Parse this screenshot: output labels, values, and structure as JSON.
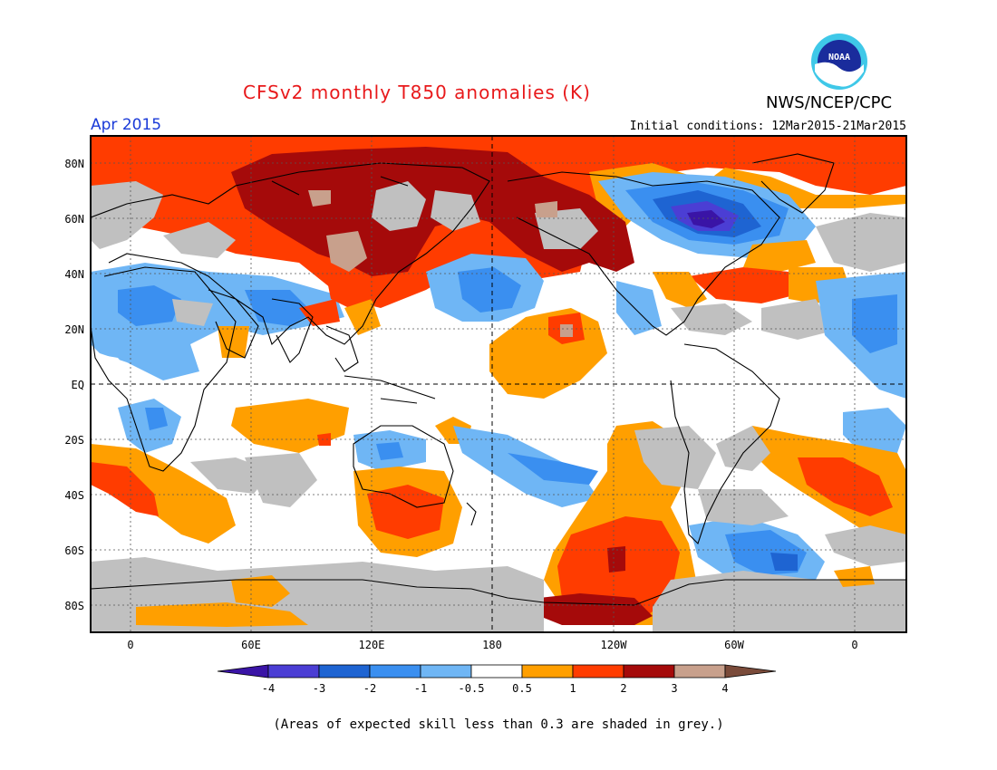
{
  "header": {
    "title": "CFSv2 monthly T850 anomalies (K)",
    "title_color": "#e8191b",
    "organization": "NWS/NCEP/CPC",
    "logo_text": "NOAA",
    "forecast_month": "Apr 2015",
    "forecast_month_color": "#1a3ad8",
    "initial_conditions": "Initial conditions: 12Mar2015-21Mar2015"
  },
  "map": {
    "projection": "cylindrical equidistant",
    "lat_labels": [
      "80N",
      "60N",
      "40N",
      "20N",
      "EQ",
      "20S",
      "40S",
      "60S",
      "80S"
    ],
    "lon_labels": [
      "0",
      "60E",
      "120E",
      "180",
      "120W",
      "60W",
      "0"
    ],
    "anomaly_regions": [
      {
        "name": "arctic-warm-band",
        "category": "1-2",
        "desc": "high latitudes Northern Hemisphere"
      },
      {
        "name": "siberia-strong-warm",
        "category": "2-3",
        "desc": "northern Asia"
      },
      {
        "name": "alaska-beringia-warm",
        "category": "2-3",
        "desc": "Bering region"
      },
      {
        "name": "hudson-bay-cold",
        "category": "-4 to -3",
        "desc": "northeastern Canada"
      },
      {
        "name": "south-asia-cool",
        "category": "-1 to -0.5",
        "desc": "India / Middle East"
      },
      {
        "name": "central-pacific-warm",
        "category": "0.5-1",
        "desc": "north of equator"
      },
      {
        "name": "australia-east-warm",
        "category": "1-2",
        "desc": "Tasman Sea"
      },
      {
        "name": "south-pacific-warm",
        "category": "1-3",
        "desc": "off Antarctica"
      },
      {
        "name": "south-atlantic-warm",
        "category": "1-2",
        "desc": "mid latitudes"
      },
      {
        "name": "drake-passage-cool",
        "category": "-2 to -1",
        "desc": "south of South America"
      }
    ]
  },
  "colorbar": {
    "colors": [
      "#3a14a6",
      "#4b3ed4",
      "#1e64d2",
      "#3a8ff0",
      "#6fb6f5",
      "#ffffff",
      "#ff9f00",
      "#ff3c00",
      "#a50a0a",
      "#c8a08c",
      "#7a4b3a"
    ],
    "tick_labels": [
      "-4",
      "-3",
      "-2",
      "-1",
      "-0.5",
      "0.5",
      "1",
      "2",
      "3",
      "4"
    ]
  },
  "footer": {
    "caption": "(Areas of expected skill less than 0.3 are shaded in grey.)"
  }
}
